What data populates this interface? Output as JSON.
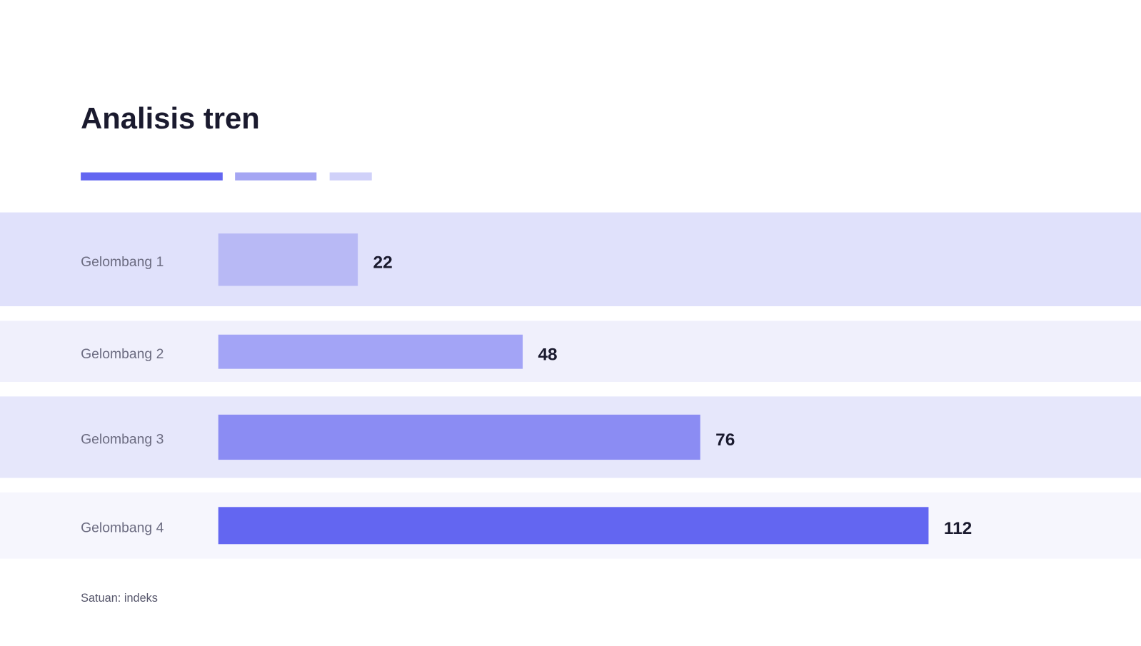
{
  "chart_data": {
    "type": "bar",
    "orientation": "horizontal",
    "title": "Analisis tren",
    "categories": [
      "Gelombang 1",
      "Gelombang 2",
      "Gelombang 3",
      "Gelombang 4"
    ],
    "values": [
      22,
      48,
      76,
      112
    ],
    "colors": [
      "#b8b9f5",
      "#a3a4f6",
      "#8b8cf3",
      "#6366f1"
    ],
    "note": "Satuan: indeks"
  }
}
